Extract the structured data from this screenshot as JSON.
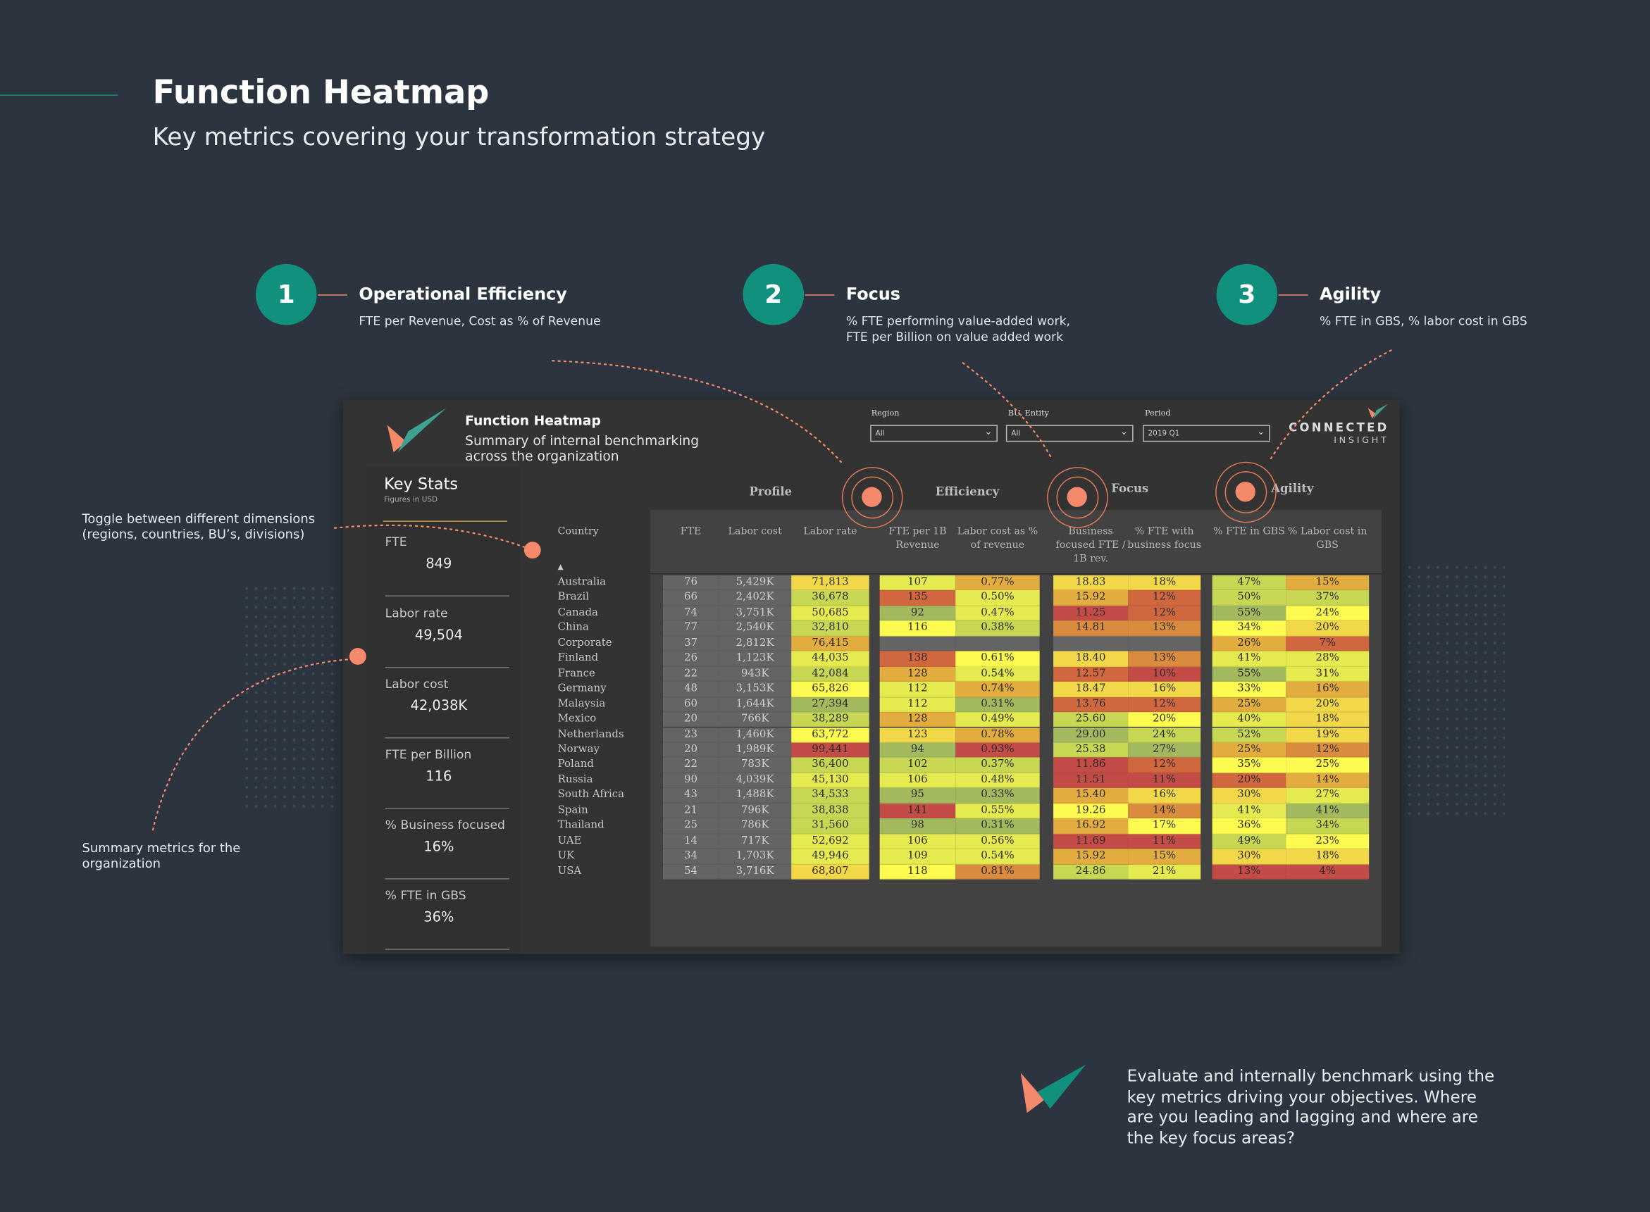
{
  "page": {
    "title": "Function Heatmap",
    "subtitle": "Key metrics covering your transformation strategy"
  },
  "colors": {
    "background": "#2c353f",
    "teal": "#11917d",
    "accent": "#f4896b",
    "panel": "#333333",
    "table_bg": "#424242"
  },
  "steps": [
    {
      "number": "1",
      "title": "Operational Efficiency",
      "desc": [
        "FTE per Revenue, Cost as % of Revenue"
      ]
    },
    {
      "number": "2",
      "title": "Focus",
      "desc": [
        "% FTE performing value-added work,",
        "FTE per Billion on value added work"
      ]
    },
    {
      "number": "3",
      "title": "Agility",
      "desc": [
        "% FTE in GBS, % labor cost in GBS"
      ]
    }
  ],
  "notes": {
    "toggle": [
      "Toggle between different dimensions",
      "(regions, countries, BU’s, divisions)"
    ],
    "summary": [
      "Summary  metrics for the",
      "organization"
    ],
    "evaluate": [
      "Evaluate and internally benchmark using the",
      "key metrics driving your objectives.  Where",
      "are you leading and lagging and where are",
      "the key focus areas?"
    ]
  },
  "dashboard": {
    "title": "Function Heatmap",
    "subtitle": [
      "Summary of internal benchmarking",
      "across the organization"
    ],
    "brand": {
      "line1": "CONNECTED",
      "line2": "INSIGHT"
    },
    "filters": [
      {
        "label": "Region",
        "value": "All"
      },
      {
        "label": "BU, Entity",
        "value": "All"
      },
      {
        "label": "Period",
        "value": "2019 Q1"
      }
    ],
    "key_stats": {
      "title": "Key Stats",
      "note": "Figures in USD",
      "items": [
        {
          "label": "FTE",
          "value": "849"
        },
        {
          "label": "Labor rate",
          "value": "49,504"
        },
        {
          "label": "Labor cost",
          "value": "42,038K"
        },
        {
          "label": "FTE per Billion",
          "value": "116"
        },
        {
          "label": "% Business focused",
          "value": "16%"
        },
        {
          "label": "% FTE in GBS",
          "value": "36%"
        }
      ]
    },
    "sections": [
      "Profile",
      "Efficiency",
      "Focus",
      "Agility"
    ],
    "country_header": "Country",
    "sort_icon": "triangle-up",
    "columns": [
      "FTE",
      "Labor cost",
      "Labor rate",
      "FTE per 1B Revenue",
      "Labor cost as % of revenue",
      "Business focused FTE / 1B rev.",
      "% FTE with business focus",
      "% FTE in GBS",
      "% Labor cost in GBS"
    ],
    "heat_colors": {
      "r": "#c44c47",
      "o": "#d0673f",
      "o2": "#d98b3e",
      "a": "#e3ac3f",
      "y": "#f2d849",
      "Y": "#fdfa50",
      "l": "#e5ea4f",
      "g": "#c7d653",
      "G": "#a3b95e"
    },
    "rows": [
      {
        "country": "Australia",
        "values": [
          "76",
          "5,429K",
          "71,813",
          "107",
          "0.77%",
          "18.83",
          "18%",
          "47%",
          "15%"
        ],
        "heat": [
          "y",
          "l",
          "a",
          "y",
          "y",
          "g",
          "a"
        ]
      },
      {
        "country": "Brazil",
        "values": [
          "66",
          "2,402K",
          "36,678",
          "135",
          "0.50%",
          "15.92",
          "12%",
          "50%",
          "37%"
        ],
        "heat": [
          "g",
          "o",
          "l",
          "a",
          "o",
          "g",
          "g"
        ]
      },
      {
        "country": "Canada",
        "values": [
          "74",
          "3,751K",
          "50,685",
          "92",
          "0.47%",
          "11.25",
          "12%",
          "55%",
          "24%"
        ],
        "heat": [
          "l",
          "G",
          "l",
          "r",
          "o",
          "G",
          "Y"
        ]
      },
      {
        "country": "China",
        "values": [
          "77",
          "2,540K",
          "32,810",
          "116",
          "0.38%",
          "14.81",
          "13%",
          "34%",
          "20%"
        ],
        "heat": [
          "g",
          "Y",
          "g",
          "o2",
          "o2",
          "Y",
          "y"
        ]
      },
      {
        "country": "Corporate",
        "values": [
          "37",
          "2,812K",
          "76,415",
          "",
          "",
          "",
          "",
          "26%",
          "7%"
        ],
        "heat": [
          "a",
          "",
          "",
          "",
          "",
          "a",
          "o"
        ]
      },
      {
        "country": "Finland",
        "values": [
          "26",
          "1,123K",
          "44,035",
          "138",
          "0.61%",
          "18.40",
          "13%",
          "41%",
          "28%"
        ],
        "heat": [
          "l",
          "o",
          "Y",
          "y",
          "o2",
          "l",
          "l"
        ]
      },
      {
        "country": "France",
        "values": [
          "22",
          "943K",
          "42,084",
          "128",
          "0.54%",
          "12.57",
          "10%",
          "55%",
          "31%"
        ],
        "heat": [
          "g",
          "a",
          "l",
          "o",
          "r",
          "G",
          "l"
        ]
      },
      {
        "country": "Germany",
        "values": [
          "48",
          "3,153K",
          "65,826",
          "112",
          "0.74%",
          "18.47",
          "16%",
          "33%",
          "16%"
        ],
        "heat": [
          "Y",
          "l",
          "a",
          "y",
          "y",
          "Y",
          "a"
        ]
      },
      {
        "country": "Malaysia",
        "values": [
          "60",
          "1,644K",
          "27,394",
          "112",
          "0.31%",
          "13.76",
          "12%",
          "25%",
          "20%"
        ],
        "heat": [
          "G",
          "l",
          "G",
          "o",
          "o",
          "a",
          "y"
        ]
      },
      {
        "country": "Mexico",
        "values": [
          "20",
          "766K",
          "38,289",
          "128",
          "0.49%",
          "25.60",
          "20%",
          "40%",
          "18%"
        ],
        "heat": [
          "g",
          "a",
          "l",
          "g",
          "Y",
          "l",
          "y"
        ]
      },
      {
        "country": "Netherlands",
        "values": [
          "23",
          "1,460K",
          "63,772",
          "123",
          "0.78%",
          "29.00",
          "24%",
          "52%",
          "19%"
        ],
        "heat": [
          "Y",
          "y",
          "a",
          "G",
          "g",
          "g",
          "y"
        ]
      },
      {
        "country": "Norway",
        "values": [
          "20",
          "1,989K",
          "99,441",
          "94",
          "0.93%",
          "25.38",
          "27%",
          "25%",
          "12%"
        ],
        "heat": [
          "r",
          "G",
          "r",
          "g",
          "G",
          "a",
          "o2"
        ]
      },
      {
        "country": "Poland",
        "values": [
          "22",
          "783K",
          "36,400",
          "102",
          "0.37%",
          "11.86",
          "12%",
          "35%",
          "25%"
        ],
        "heat": [
          "g",
          "g",
          "g",
          "r",
          "o",
          "Y",
          "Y"
        ]
      },
      {
        "country": "Russia",
        "values": [
          "90",
          "4,039K",
          "45,130",
          "106",
          "0.48%",
          "11.51",
          "11%",
          "20%",
          "14%"
        ],
        "heat": [
          "l",
          "l",
          "l",
          "r",
          "r",
          "o",
          "a"
        ]
      },
      {
        "country": "South Africa",
        "values": [
          "43",
          "1,488K",
          "34,533",
          "95",
          "0.33%",
          "15.40",
          "16%",
          "30%",
          "27%"
        ],
        "heat": [
          "g",
          "G",
          "G",
          "a",
          "y",
          "y",
          "l"
        ]
      },
      {
        "country": "Spain",
        "values": [
          "21",
          "796K",
          "38,838",
          "141",
          "0.55%",
          "19.26",
          "14%",
          "41%",
          "41%"
        ],
        "heat": [
          "g",
          "r",
          "l",
          "Y",
          "o2",
          "l",
          "G"
        ]
      },
      {
        "country": "Thailand",
        "values": [
          "25",
          "786K",
          "31,560",
          "98",
          "0.31%",
          "16.92",
          "17%",
          "36%",
          "34%"
        ],
        "heat": [
          "g",
          "G",
          "G",
          "a",
          "Y",
          "Y",
          "g"
        ]
      },
      {
        "country": "UAE",
        "values": [
          "14",
          "717K",
          "52,692",
          "106",
          "0.56%",
          "11.69",
          "11%",
          "49%",
          "23%"
        ],
        "heat": [
          "l",
          "l",
          "l",
          "r",
          "r",
          "g",
          "Y"
        ]
      },
      {
        "country": "UK",
        "values": [
          "34",
          "1,703K",
          "49,946",
          "109",
          "0.54%",
          "15.92",
          "15%",
          "30%",
          "18%"
        ],
        "heat": [
          "l",
          "l",
          "l",
          "a",
          "a",
          "y",
          "y"
        ]
      },
      {
        "country": "USA",
        "values": [
          "54",
          "3,716K",
          "68,807",
          "118",
          "0.81%",
          "24.86",
          "21%",
          "13%",
          "4%"
        ],
        "heat": [
          "y",
          "Y",
          "o2",
          "g",
          "l",
          "r",
          "r"
        ]
      }
    ]
  }
}
